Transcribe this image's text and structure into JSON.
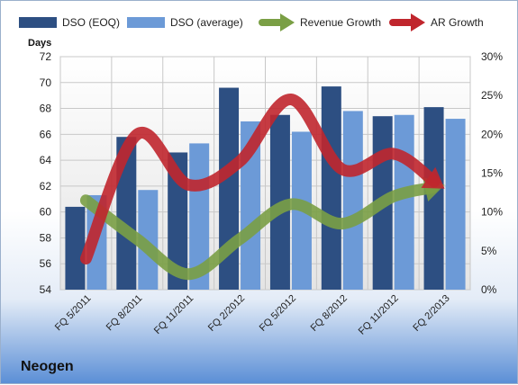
{
  "company_label": "Neogen",
  "chart_data": {
    "type": "bar",
    "y_left_label": "Days",
    "y_left_ticks": [
      "72",
      "70",
      "68",
      "66",
      "64",
      "62",
      "60",
      "58",
      "56",
      "54"
    ],
    "y_left_range": [
      54,
      72
    ],
    "y_right_ticks": [
      "30%",
      "25%",
      "20%",
      "15%",
      "10%",
      "5%",
      "0%"
    ],
    "y_right_range": [
      0,
      30
    ],
    "grid": true,
    "legend_position": "top",
    "categories": [
      "FQ 5/2011",
      "FQ 8/2011",
      "FQ 11/2011",
      "FQ 2/2012",
      "FQ 5/2012",
      "FQ 8/2012",
      "FQ 11/2012",
      "FQ 2/2013"
    ],
    "series": [
      {
        "name": "DSO (EOQ)",
        "kind": "bar",
        "axis": "left",
        "color": "#2d4f82",
        "values": [
          60.4,
          65.8,
          64.6,
          69.6,
          67.5,
          69.7,
          67.4,
          68.1
        ]
      },
      {
        "name": "DSO (average)",
        "kind": "bar",
        "axis": "left",
        "color": "#6c9ad7",
        "values": [
          61.3,
          61.7,
          65.3,
          67.0,
          66.2,
          67.8,
          67.5,
          67.2
        ]
      },
      {
        "name": "Revenue Growth",
        "kind": "line-arrow",
        "axis": "right",
        "color": "#7a9f45",
        "values": [
          11.5,
          6.5,
          2.0,
          6.5,
          11.0,
          8.5,
          12.0,
          13.5
        ]
      },
      {
        "name": "AR Growth",
        "kind": "line-arrow",
        "axis": "right",
        "color": "#c0262d",
        "values": [
          4.0,
          20.0,
          13.5,
          16.5,
          24.5,
          15.5,
          17.5,
          13.0
        ]
      }
    ]
  }
}
